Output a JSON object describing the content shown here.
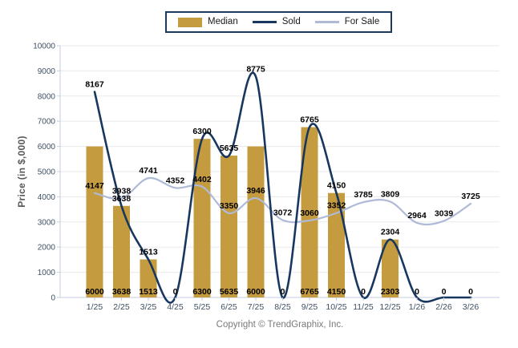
{
  "legend": {
    "items": [
      {
        "label": "Median",
        "swatch": "bar",
        "color": "#C49B3E"
      },
      {
        "label": "Sold",
        "swatch": "line",
        "color": "#17375E"
      },
      {
        "label": "For Sale",
        "swatch": "line",
        "color": "#AFBAD6"
      }
    ]
  },
  "chart_data": {
    "type": "bar+line",
    "title": "",
    "categories": [
      "1/25",
      "2/25",
      "3/25",
      "4/25",
      "5/25",
      "6/25",
      "7/25",
      "8/25",
      "9/25",
      "10/25",
      "11/25",
      "12/25",
      "1/26",
      "2/26",
      "3/26"
    ],
    "series": [
      {
        "name": "Median",
        "type": "bar",
        "color": "#C49B3E",
        "values": [
          6000,
          3638,
          1513,
          0,
          6300,
          5635,
          6000,
          0,
          6765,
          4150,
          0,
          2303,
          0,
          0,
          0
        ]
      },
      {
        "name": "Sold",
        "type": "line",
        "color": "#17375E",
        "values": [
          8167,
          3638,
          1513,
          0,
          6300,
          5635,
          8775,
          0,
          6765,
          4150,
          0,
          2304,
          0,
          0,
          0
        ]
      },
      {
        "name": "For Sale",
        "type": "line",
        "color": "#AFBAD6",
        "values": [
          4147,
          3938,
          4741,
          4352,
          4402,
          3350,
          3946,
          3072,
          3060,
          3352,
          3785,
          3809,
          2964,
          3039,
          3725
        ]
      }
    ],
    "ylabel": "Price (in $,000)",
    "ylim": [
      0,
      10000
    ],
    "ytick_step": 1000,
    "grid": true,
    "legend_position": "top"
  },
  "footer": {
    "copyright": "Copyright © TrendGraphix, Inc."
  },
  "colors": {
    "background": "#FFFFFF",
    "grid": "#EAEAED",
    "axis": "#C5CEE0",
    "tick_label": "#3E5063",
    "data_label": "#000000",
    "axis_title": "#595959",
    "copyright": "#7A7A7A",
    "legend_border": "#1B3A5F"
  }
}
